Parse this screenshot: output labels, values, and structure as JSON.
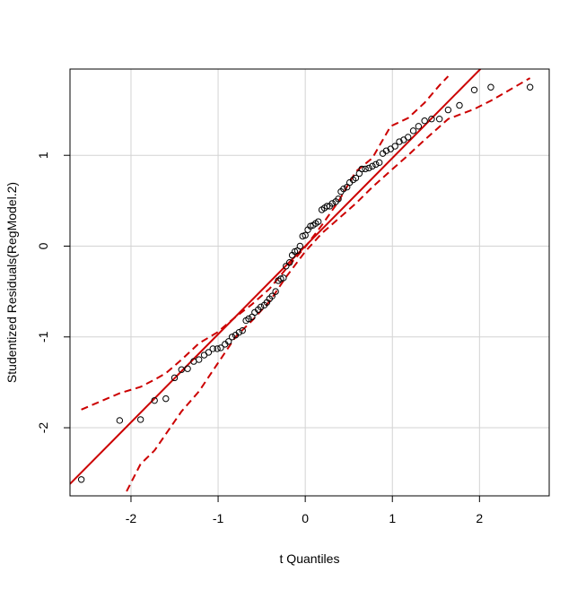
{
  "chart_data": {
    "type": "scatter",
    "title": "",
    "xlabel": "t Quantiles",
    "ylabel": "Studentized Residuals(RegModel.2)",
    "xlim": [
      -2.7,
      2.8
    ],
    "ylim": [
      -2.75,
      1.95
    ],
    "x_ticks": [
      -2,
      -1,
      0,
      1,
      2
    ],
    "x_tick_labels": [
      "-2",
      "-1",
      "0",
      "1",
      "2"
    ],
    "y_ticks": [
      -2,
      -1,
      0,
      1
    ],
    "y_tick_labels": [
      "-2",
      "-1",
      "0",
      "1"
    ],
    "grid": true,
    "colors": {
      "reference_line": "#cc0000",
      "envelope": "#cc0000",
      "points": "#000000",
      "grid": "#d3d3d3"
    },
    "reference_line": {
      "intercept": 0.0,
      "slope": 0.97
    },
    "points": [
      [
        -2.57,
        -2.57
      ],
      [
        -2.13,
        -1.92
      ],
      [
        -1.89,
        -1.91
      ],
      [
        -1.73,
        -1.7
      ],
      [
        -1.6,
        -1.68
      ],
      [
        -1.5,
        -1.45
      ],
      [
        -1.42,
        -1.36
      ],
      [
        -1.35,
        -1.35
      ],
      [
        -1.28,
        -1.27
      ],
      [
        -1.22,
        -1.25
      ],
      [
        -1.16,
        -1.2
      ],
      [
        -1.11,
        -1.17
      ],
      [
        -1.06,
        -1.13
      ],
      [
        -1.01,
        -1.13
      ],
      [
        -0.97,
        -1.12
      ],
      [
        -0.92,
        -1.08
      ],
      [
        -0.88,
        -1.05
      ],
      [
        -0.84,
        -1.0
      ],
      [
        -0.8,
        -0.98
      ],
      [
        -0.76,
        -0.95
      ],
      [
        -0.72,
        -0.93
      ],
      [
        -0.68,
        -0.82
      ],
      [
        -0.65,
        -0.8
      ],
      [
        -0.61,
        -0.78
      ],
      [
        -0.58,
        -0.73
      ],
      [
        -0.54,
        -0.7
      ],
      [
        -0.51,
        -0.67
      ],
      [
        -0.47,
        -0.65
      ],
      [
        -0.44,
        -0.62
      ],
      [
        -0.41,
        -0.58
      ],
      [
        -0.38,
        -0.55
      ],
      [
        -0.34,
        -0.5
      ],
      [
        -0.31,
        -0.38
      ],
      [
        -0.28,
        -0.36
      ],
      [
        -0.25,
        -0.35
      ],
      [
        -0.22,
        -0.22
      ],
      [
        -0.18,
        -0.18
      ],
      [
        -0.15,
        -0.1
      ],
      [
        -0.12,
        -0.06
      ],
      [
        -0.09,
        -0.05
      ],
      [
        -0.06,
        0.0
      ],
      [
        -0.03,
        0.11
      ],
      [
        0.0,
        0.12
      ],
      [
        0.03,
        0.18
      ],
      [
        0.06,
        0.22
      ],
      [
        0.09,
        0.23
      ],
      [
        0.12,
        0.25
      ],
      [
        0.15,
        0.27
      ],
      [
        0.19,
        0.4
      ],
      [
        0.22,
        0.42
      ],
      [
        0.25,
        0.44
      ],
      [
        0.28,
        0.44
      ],
      [
        0.31,
        0.47
      ],
      [
        0.35,
        0.49
      ],
      [
        0.38,
        0.52
      ],
      [
        0.41,
        0.6
      ],
      [
        0.44,
        0.63
      ],
      [
        0.48,
        0.65
      ],
      [
        0.51,
        0.7
      ],
      [
        0.55,
        0.73
      ],
      [
        0.58,
        0.75
      ],
      [
        0.62,
        0.8
      ],
      [
        0.65,
        0.85
      ],
      [
        0.69,
        0.85
      ],
      [
        0.73,
        0.86
      ],
      [
        0.77,
        0.88
      ],
      [
        0.81,
        0.9
      ],
      [
        0.85,
        0.92
      ],
      [
        0.89,
        1.02
      ],
      [
        0.93,
        1.05
      ],
      [
        0.98,
        1.07
      ],
      [
        1.03,
        1.1
      ],
      [
        1.08,
        1.15
      ],
      [
        1.13,
        1.17
      ],
      [
        1.18,
        1.2
      ],
      [
        1.24,
        1.27
      ],
      [
        1.3,
        1.32
      ],
      [
        1.37,
        1.38
      ],
      [
        1.45,
        1.4
      ],
      [
        1.54,
        1.4
      ],
      [
        1.64,
        1.5
      ],
      [
        1.77,
        1.55
      ],
      [
        1.94,
        1.72
      ],
      [
        2.13,
        1.75
      ],
      [
        2.58,
        1.75
      ]
    ],
    "envelope_upper": [
      [
        -2.57,
        -1.8
      ],
      [
        -2.13,
        -1.62
      ],
      [
        -1.89,
        -1.55
      ],
      [
        -1.73,
        -1.47
      ],
      [
        -1.6,
        -1.4
      ],
      [
        -1.42,
        -1.25
      ],
      [
        -1.22,
        -1.07
      ],
      [
        -1.01,
        -0.95
      ],
      [
        -0.8,
        -0.78
      ],
      [
        -0.61,
        -0.64
      ],
      [
        -0.41,
        -0.47
      ],
      [
        -0.22,
        -0.25
      ],
      [
        0.0,
        -0.01
      ],
      [
        0.19,
        0.23
      ],
      [
        0.38,
        0.49
      ],
      [
        0.58,
        0.82
      ],
      [
        0.77,
        0.97
      ],
      [
        0.98,
        1.32
      ],
      [
        1.18,
        1.41
      ],
      [
        1.37,
        1.58
      ],
      [
        1.54,
        1.77
      ],
      [
        1.64,
        1.87
      ]
    ],
    "envelope_lower": [
      [
        -2.05,
        -2.7
      ],
      [
        -1.89,
        -2.4
      ],
      [
        -1.73,
        -2.25
      ],
      [
        -1.6,
        -2.07
      ],
      [
        -1.42,
        -1.82
      ],
      [
        -1.22,
        -1.6
      ],
      [
        -1.01,
        -1.3
      ],
      [
        -0.8,
        -1.0
      ],
      [
        -0.61,
        -0.82
      ],
      [
        -0.41,
        -0.61
      ],
      [
        -0.22,
        -0.34
      ],
      [
        0.0,
        -0.06
      ],
      [
        0.19,
        0.14
      ],
      [
        0.38,
        0.3
      ],
      [
        0.58,
        0.47
      ],
      [
        0.77,
        0.65
      ],
      [
        0.98,
        0.83
      ],
      [
        1.18,
        1.0
      ],
      [
        1.37,
        1.17
      ],
      [
        1.64,
        1.4
      ],
      [
        1.94,
        1.51
      ],
      [
        2.13,
        1.6
      ],
      [
        2.58,
        1.85
      ]
    ]
  }
}
